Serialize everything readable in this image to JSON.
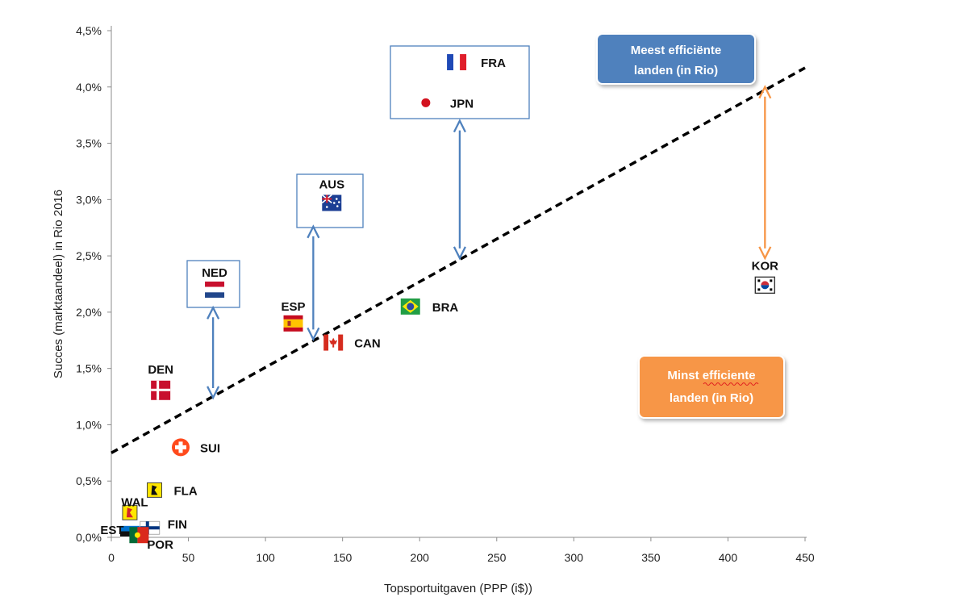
{
  "chart_data": {
    "type": "scatter",
    "title": "",
    "xlabel": "Topsportuitgaven (PPP (i$))",
    "ylabel": "Succes (marktaandeel) in Rio 2016",
    "xlim": [
      0,
      450
    ],
    "ylim": [
      0,
      4.5
    ],
    "x_ticks": [
      "0",
      "50",
      "100",
      "150",
      "200",
      "250",
      "300",
      "350",
      "400",
      "450"
    ],
    "y_ticks": [
      "0,0%",
      "0,5%",
      "1,0%",
      "1,5%",
      "2,0%",
      "2,5%",
      "3,0%",
      "3,5%",
      "4,0%",
      "4,5%"
    ],
    "trendline": {
      "style": "dashed",
      "x": [
        0,
        450
      ],
      "y": [
        0.75,
        4.17
      ]
    },
    "points": [
      {
        "code": "FRA",
        "x": 224,
        "y": 4.22,
        "flag": "france-flag"
      },
      {
        "code": "JPN",
        "x": 204,
        "y": 3.86,
        "flag": "japan-flag"
      },
      {
        "code": "AUS",
        "x": 143,
        "y": 2.97,
        "flag": "australia-flag"
      },
      {
        "code": "NED",
        "x": 67,
        "y": 2.2,
        "flag": "netherlands-flag"
      },
      {
        "code": "ESP",
        "x": 118,
        "y": 1.9,
        "flag": "spain-flag"
      },
      {
        "code": "BRA",
        "x": 194,
        "y": 2.05,
        "flag": "brazil-flag"
      },
      {
        "code": "CAN",
        "x": 144,
        "y": 1.73,
        "flag": "canada-flag"
      },
      {
        "code": "DEN",
        "x": 32,
        "y": 1.32,
        "flag": "denmark-flag"
      },
      {
        "code": "SUI",
        "x": 45,
        "y": 0.8,
        "flag": "switzerland-flag"
      },
      {
        "code": "FLA",
        "x": 28,
        "y": 0.42,
        "flag": "flanders-flag"
      },
      {
        "code": "WAL",
        "x": 12,
        "y": 0.22,
        "flag": "wallonia-flag"
      },
      {
        "code": "FIN",
        "x": 25,
        "y": 0.07,
        "flag": "finland-flag"
      },
      {
        "code": "EST",
        "x": 12,
        "y": 0.03,
        "flag": "estonia-flag"
      },
      {
        "code": "POR",
        "x": 18,
        "y": 0.02,
        "flag": "portugal-flag"
      },
      {
        "code": "KOR",
        "x": 424,
        "y": 2.24,
        "flag": "korea-flag"
      }
    ],
    "annotations": {
      "most_efficient": "Meest efficiënte landen (in Rio)",
      "most_efficient_lines": [
        "Meest efficiënte",
        "landen (in Rio)"
      ],
      "least_efficient": "Minst efficiente landen (in Rio)",
      "least_efficient_lines": [
        "Minst efficiente",
        "landen (in  Rio)"
      ]
    },
    "arrows": [
      {
        "name": "arrow-ned",
        "color": "#4f81bd",
        "x": [
          66,
          66
        ],
        "y": [
          2.04,
          1.24
        ]
      },
      {
        "name": "arrow-aus",
        "color": "#4f81bd",
        "x": [
          131,
          131
        ],
        "y": [
          2.76,
          1.76
        ]
      },
      {
        "name": "arrow-jpn",
        "color": "#4f81bd",
        "x": [
          226,
          226
        ],
        "y": [
          3.7,
          2.48
        ]
      },
      {
        "name": "arrow-kor",
        "color": "#f79646",
        "x": [
          424,
          424
        ],
        "y": [
          4.0,
          2.48
        ]
      }
    ],
    "colors": {
      "trendline": "#000000",
      "arrow_blue": "#4f81bd",
      "arrow_orange": "#f79646",
      "box_blue": "#4f81bd",
      "box_orange": "#f79646",
      "frame_blue": "#4f81bd"
    }
  }
}
